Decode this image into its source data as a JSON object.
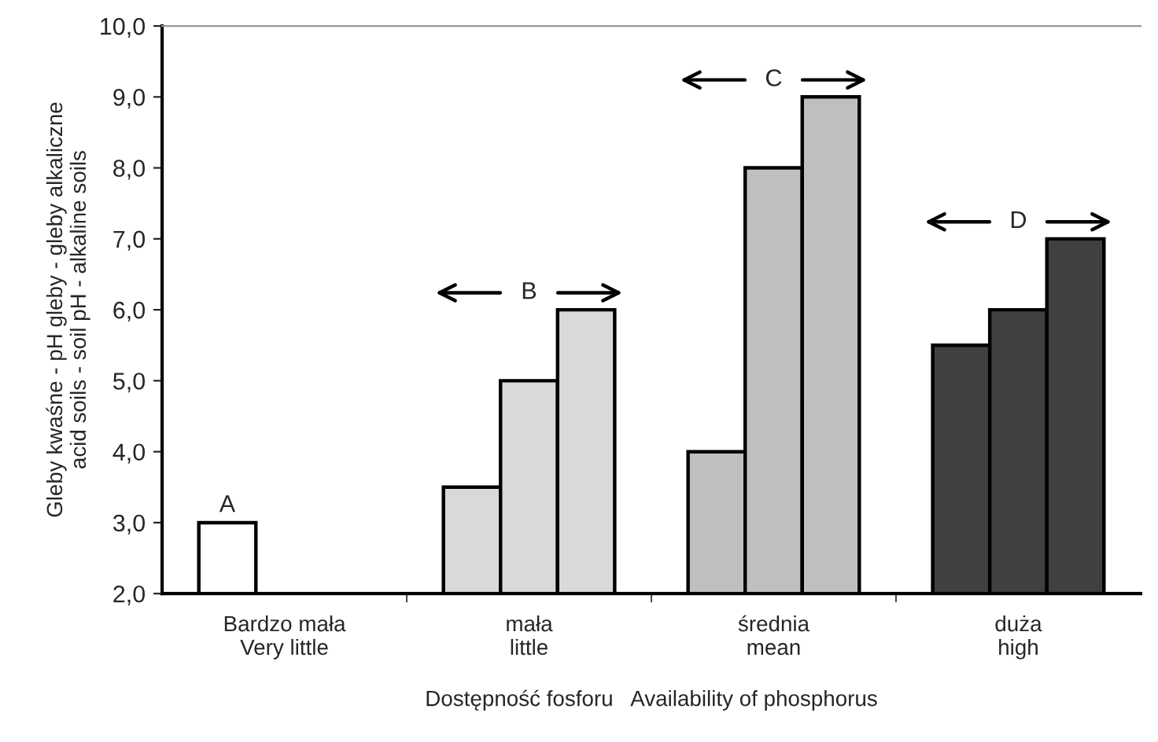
{
  "chart_data": {
    "type": "bar",
    "xlabel": "Dostępność fosforu   Availability of phosphorus",
    "ylabel": "Gleby kwaśne - pH gleby - gleby alkaliczne\nacid soils - soil pH - alkaline soils",
    "categories": [
      "Bardzo mała\nVery little",
      "mała\nlittle",
      "średnia\nmean",
      "duża\nhigh"
    ],
    "series": [
      {
        "colors": [
          "#ffffff",
          "#d9d9d9",
          "#bfbfbf",
          "#404040"
        ],
        "values": [
          3.0,
          3.5,
          4.0,
          5.5
        ]
      },
      {
        "colors": [
          "#ffffff",
          "#d9d9d9",
          "#bfbfbf",
          "#404040"
        ],
        "values": [
          null,
          5.0,
          8.0,
          6.0
        ]
      },
      {
        "colors": [
          "#ffffff",
          "#d9d9d9",
          "#bfbfbf",
          "#404040"
        ],
        "values": [
          null,
          6.0,
          9.0,
          7.0
        ]
      }
    ],
    "ylim": [
      2,
      10
    ],
    "yticks": [
      {
        "value": 2,
        "label": "2,0"
      },
      {
        "value": 3,
        "label": "3,0"
      },
      {
        "value": 4,
        "label": "4,0"
      },
      {
        "value": 5,
        "label": "5,0"
      },
      {
        "value": 6,
        "label": "6,0"
      },
      {
        "value": 7,
        "label": "7,0"
      },
      {
        "value": 8,
        "label": "8,0"
      },
      {
        "value": 9,
        "label": "9,0"
      },
      {
        "value": 10,
        "label": "10,0"
      }
    ],
    "annotations": [
      "A",
      "B",
      "C",
      "D"
    ],
    "grid": false,
    "legend": false
  }
}
